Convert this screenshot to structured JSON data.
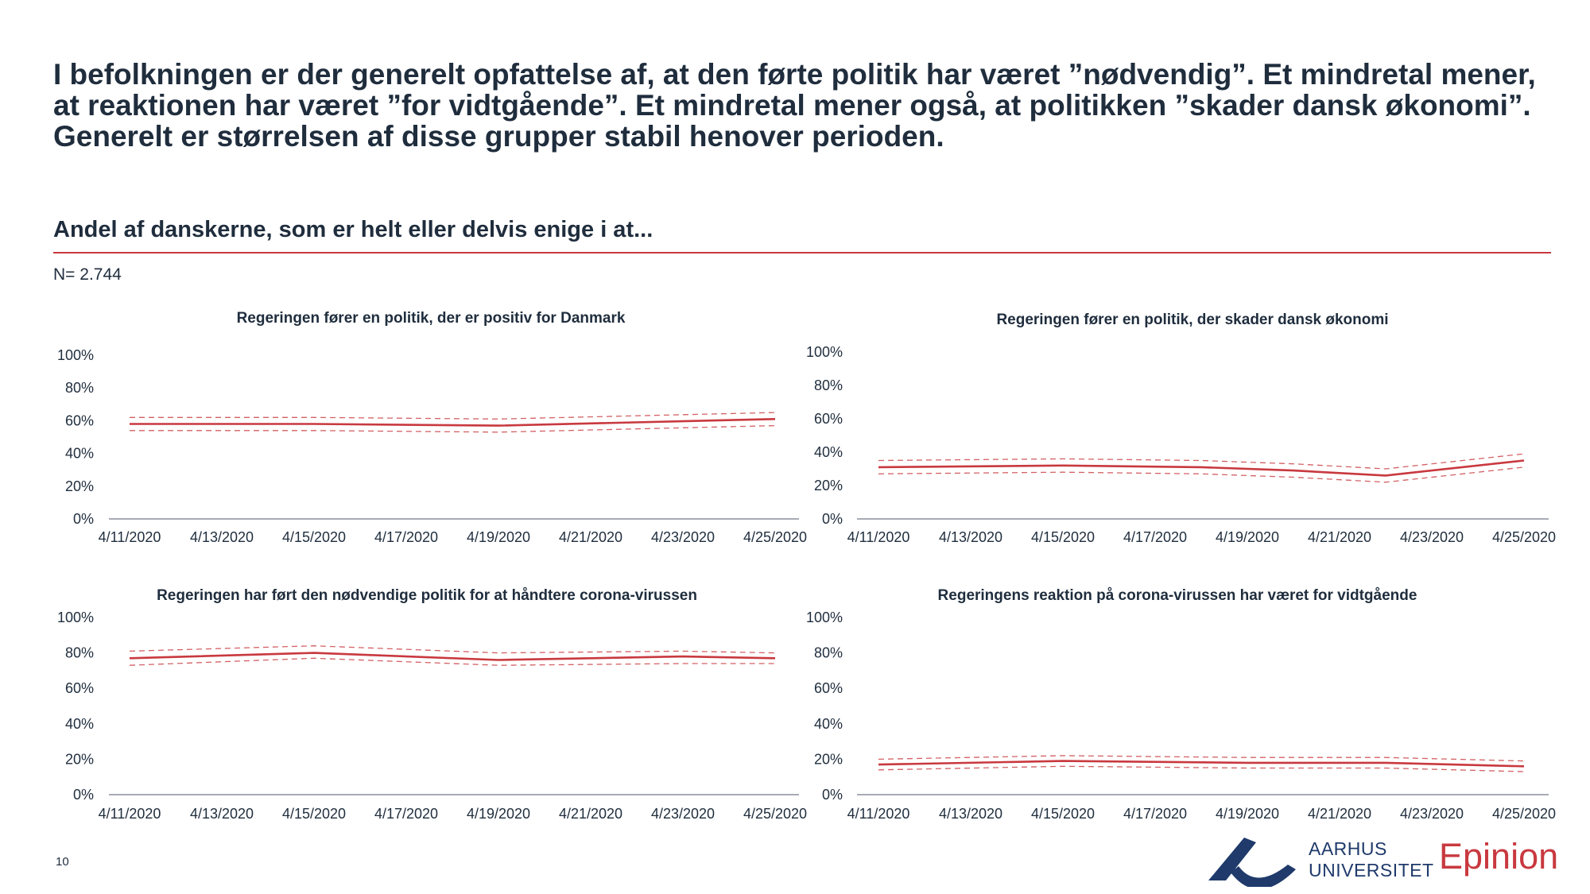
{
  "headline": "I befolkningen er der generelt opfattelse af, at den førte politik har været ”nødvendig”. Et mindretal mener, at reaktionen har været ”for vidtgående”. Et mindretal mener også, at politikken ”skader dansk økonomi”. Generelt er størrelsen af disse grupper stabil henover perioden.",
  "subtitle": "Andel af danskerne, som er helt eller delvis enige i at...",
  "n_label": "N= 2.744",
  "page_number": "10",
  "logos": {
    "au_line1": "AARHUS",
    "au_line2": "UNIVERSITET",
    "epinion": "Epinion"
  },
  "colors": {
    "line": "#c8393f",
    "axis": "#8a8f98",
    "text": "#1f2d3d",
    "au_blue": "#1f3a6b"
  },
  "chart_data": [
    {
      "type": "line",
      "title": "Regeringen fører en politik, der er positiv for Danmark",
      "categories": [
        "4/11/2020",
        "4/13/2020",
        "4/15/2020",
        "4/17/2020",
        "4/19/2020",
        "4/21/2020",
        "4/23/2020",
        "4/25/2020"
      ],
      "x_days": [
        11,
        13,
        15,
        17,
        19,
        21,
        23,
        25
      ],
      "yticks": [
        "0%",
        "20%",
        "40%",
        "60%",
        "80%",
        "100%"
      ],
      "ylim": [
        0,
        100
      ],
      "series": [
        {
          "x": [
            11,
            15,
            19,
            25
          ],
          "values": [
            58,
            58,
            57,
            61
          ],
          "style": "solid"
        },
        {
          "x": [
            11,
            15,
            19,
            25
          ],
          "values": [
            62,
            62,
            61,
            65
          ],
          "style": "dashed"
        },
        {
          "x": [
            11,
            15,
            19,
            25
          ],
          "values": [
            54,
            54,
            53,
            57
          ],
          "style": "dashed"
        }
      ]
    },
    {
      "type": "line",
      "title": "Regeringen fører en politik, der skader dansk økonomi",
      "categories": [
        "4/11/2020",
        "4/13/2020",
        "4/15/2020",
        "4/17/2020",
        "4/19/2020",
        "4/21/2020",
        "4/23/2020",
        "4/25/2020"
      ],
      "x_days": [
        11,
        13,
        15,
        17,
        19,
        21,
        23,
        25
      ],
      "yticks": [
        "0%",
        "20%",
        "40%",
        "60%",
        "80%",
        "100%"
      ],
      "ylim": [
        0,
        100
      ],
      "series": [
        {
          "x": [
            11,
            15,
            18,
            20,
            22,
            25
          ],
          "values": [
            31,
            32,
            31,
            29,
            26,
            35
          ],
          "style": "solid"
        },
        {
          "x": [
            11,
            15,
            18,
            20,
            22,
            25
          ],
          "values": [
            35,
            36,
            35,
            33,
            30,
            39
          ],
          "style": "dashed"
        },
        {
          "x": [
            11,
            15,
            18,
            20,
            22,
            25
          ],
          "values": [
            27,
            28,
            27,
            25,
            22,
            31
          ],
          "style": "dashed"
        }
      ]
    },
    {
      "type": "line",
      "title": "Regeringen har ført den nødvendige politik for at håndtere corona-virussen",
      "categories": [
        "4/11/2020",
        "4/13/2020",
        "4/15/2020",
        "4/17/2020",
        "4/19/2020",
        "4/21/2020",
        "4/23/2020",
        "4/25/2020"
      ],
      "x_days": [
        11,
        13,
        15,
        17,
        19,
        21,
        23,
        25
      ],
      "yticks": [
        "0%",
        "20%",
        "40%",
        "60%",
        "80%",
        "100%"
      ],
      "ylim": [
        0,
        100
      ],
      "series": [
        {
          "x": [
            11,
            15,
            19,
            23,
            25
          ],
          "values": [
            77,
            80,
            76,
            78,
            77
          ],
          "style": "solid"
        },
        {
          "x": [
            11,
            15,
            19,
            23,
            25
          ],
          "values": [
            81,
            84,
            80,
            81,
            80
          ],
          "style": "dashed"
        },
        {
          "x": [
            11,
            15,
            19,
            23,
            25
          ],
          "values": [
            73,
            77,
            73,
            74,
            74
          ],
          "style": "dashed"
        }
      ]
    },
    {
      "type": "line",
      "title": "Regeringens reaktion på corona-virussen har været for vidtgående",
      "categories": [
        "4/11/2020",
        "4/13/2020",
        "4/15/2020",
        "4/17/2020",
        "4/19/2020",
        "4/21/2020",
        "4/23/2020",
        "4/25/2020"
      ],
      "x_days": [
        11,
        13,
        15,
        17,
        19,
        21,
        23,
        25
      ],
      "yticks": [
        "0%",
        "20%",
        "40%",
        "60%",
        "80%",
        "100%"
      ],
      "ylim": [
        0,
        100
      ],
      "series": [
        {
          "x": [
            11,
            15,
            19,
            22,
            25
          ],
          "values": [
            17,
            19,
            18,
            18,
            16
          ],
          "style": "solid"
        },
        {
          "x": [
            11,
            15,
            19,
            22,
            25
          ],
          "values": [
            20,
            22,
            21,
            21,
            19
          ],
          "style": "dashed"
        },
        {
          "x": [
            11,
            15,
            19,
            22,
            25
          ],
          "values": [
            14,
            16,
            15,
            15,
            13
          ],
          "style": "dashed"
        }
      ]
    }
  ]
}
